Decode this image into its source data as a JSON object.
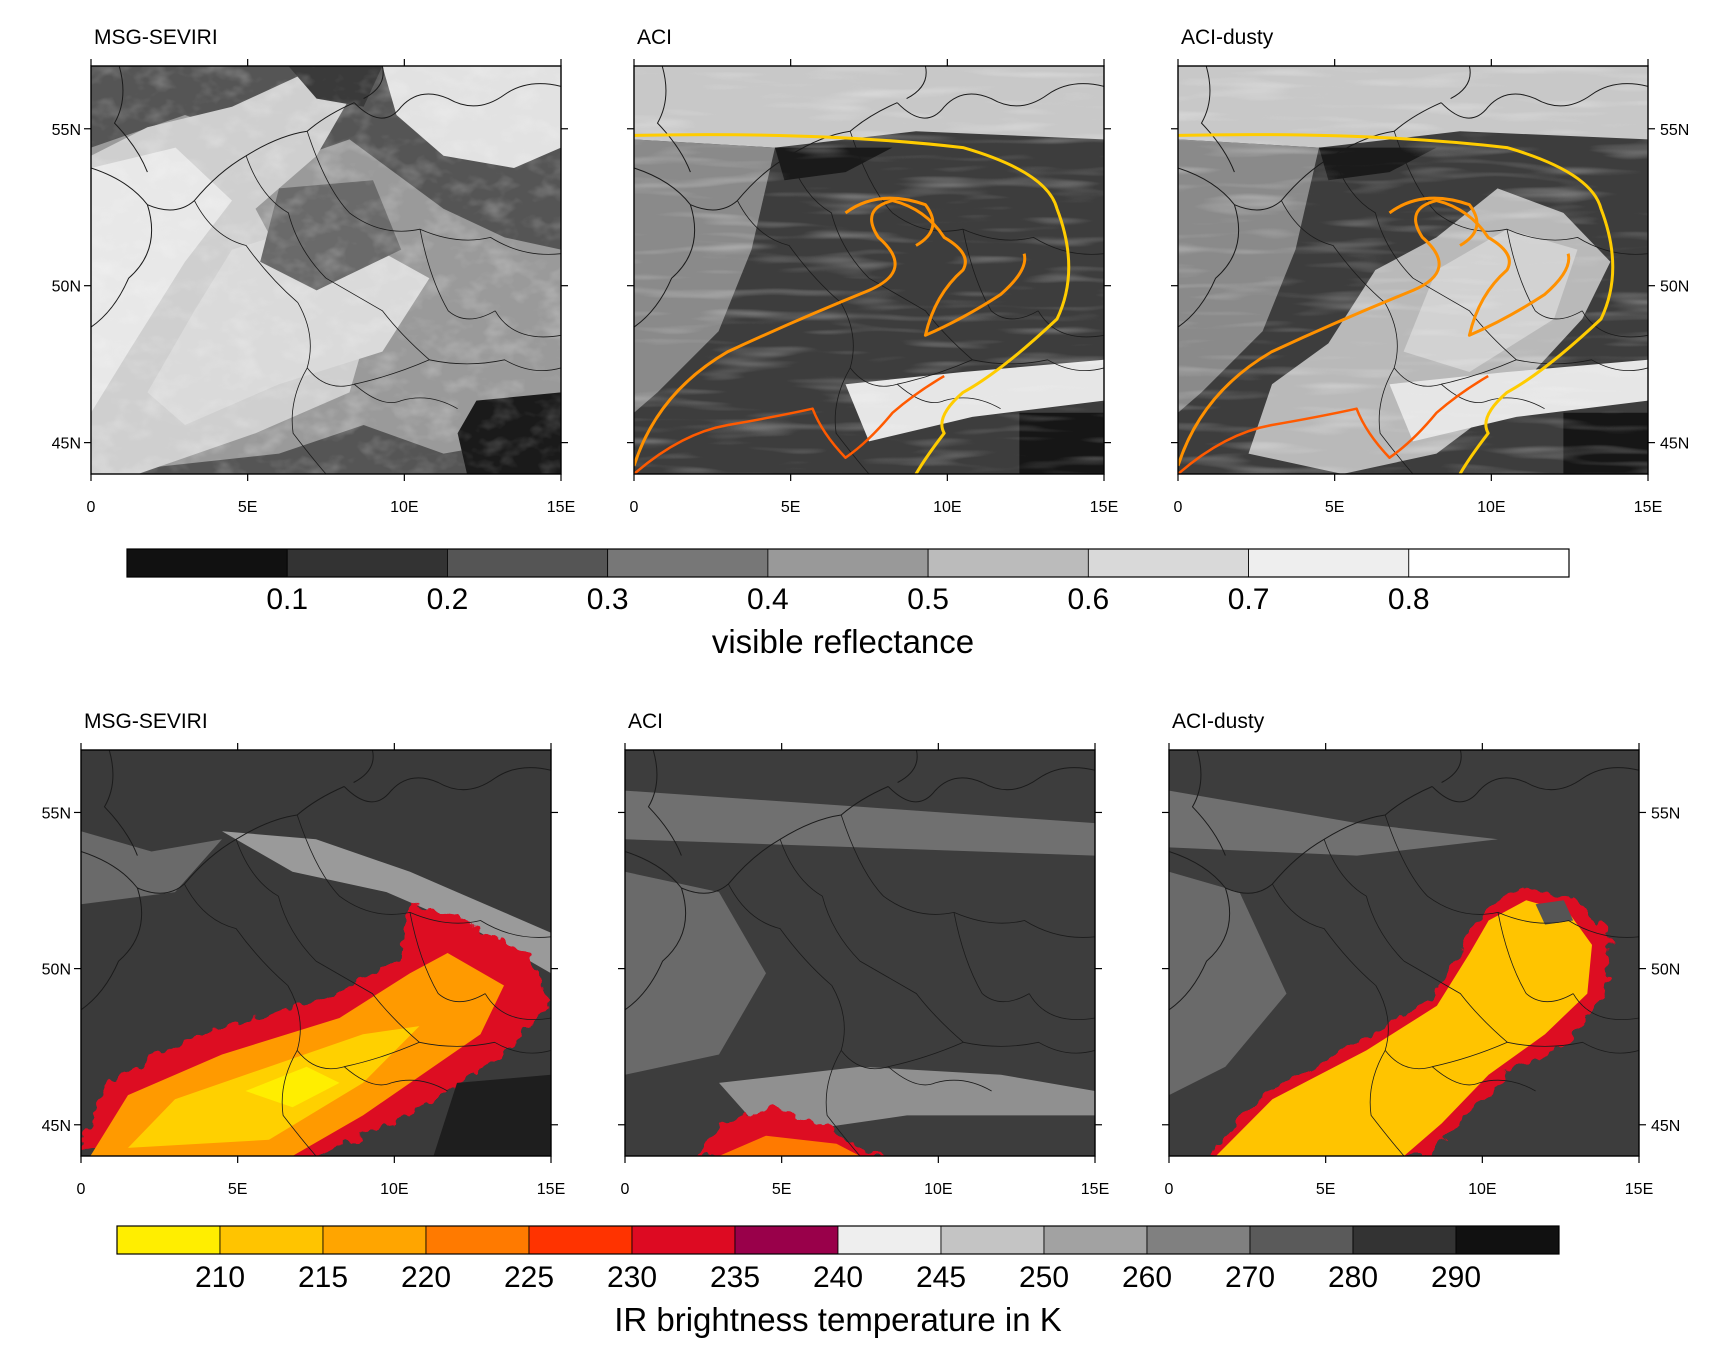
{
  "rows": [
    {
      "panels": [
        {
          "title": "MSG-SEVIRI",
          "field": "vis_obs"
        },
        {
          "title": "ACI",
          "field": "vis_aci",
          "contours": true
        },
        {
          "title": "ACI-dusty",
          "field": "vis_dusty",
          "contours": true
        }
      ],
      "colorbar": {
        "title": "visible reflectance",
        "labels": [
          "0.1",
          "0.2",
          "0.3",
          "0.4",
          "0.5",
          "0.6",
          "0.7",
          "0.8"
        ],
        "colors": [
          "#111111",
          "#333333",
          "#555555",
          "#777777",
          "#999999",
          "#bbbbbb",
          "#d9d9d9",
          "#eeeeee",
          "#ffffff"
        ]
      }
    },
    {
      "panels": [
        {
          "title": "MSG-SEVIRI",
          "field": "ir_obs"
        },
        {
          "title": "ACI",
          "field": "ir_aci"
        },
        {
          "title": "ACI-dusty",
          "field": "ir_dusty"
        }
      ],
      "colorbar": {
        "title": "IR brightness temperature in K",
        "labels": [
          "210",
          "215",
          "220",
          "225",
          "230",
          "235",
          "240",
          "245",
          "250",
          "260",
          "270",
          "280",
          "290"
        ],
        "colors": [
          "#ffee00",
          "#ffc400",
          "#ffa500",
          "#ff7a00",
          "#ff3300",
          "#dd0a22",
          "#99004a",
          "#eeeeee",
          "#c4c4c4",
          "#a2a2a2",
          "#808080",
          "#5a5a5a",
          "#333333",
          "#111111"
        ]
      }
    }
  ],
  "axes": {
    "lon_ticks": [
      "0",
      "5E",
      "10E",
      "15E"
    ],
    "lat_ticks": [
      "45N",
      "50N",
      "55N"
    ],
    "lon_range": [
      0,
      15
    ],
    "lat_range": [
      44,
      57
    ]
  }
}
